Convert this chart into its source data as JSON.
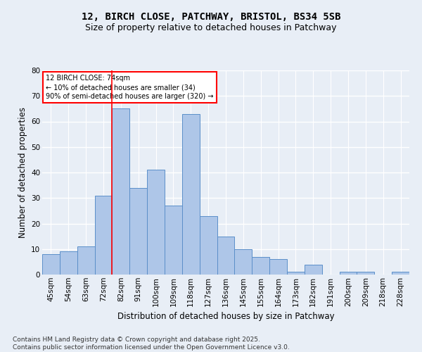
{
  "title1": "12, BIRCH CLOSE, PATCHWAY, BRISTOL, BS34 5SB",
  "title2": "Size of property relative to detached houses in Patchway",
  "xlabel": "Distribution of detached houses by size in Patchway",
  "ylabel": "Number of detached properties",
  "footer1": "Contains HM Land Registry data © Crown copyright and database right 2025.",
  "footer2": "Contains public sector information licensed under the Open Government Licence v3.0.",
  "categories": [
    "45sqm",
    "54sqm",
    "63sqm",
    "72sqm",
    "82sqm",
    "91sqm",
    "100sqm",
    "109sqm",
    "118sqm",
    "127sqm",
    "136sqm",
    "145sqm",
    "155sqm",
    "164sqm",
    "173sqm",
    "182sqm",
    "191sqm",
    "200sqm",
    "209sqm",
    "218sqm",
    "228sqm"
  ],
  "values": [
    8,
    9,
    11,
    31,
    65,
    34,
    41,
    27,
    63,
    23,
    15,
    10,
    7,
    6,
    1,
    4,
    0,
    1,
    1,
    0,
    1
  ],
  "bar_color": "#aec6e8",
  "bar_edge_color": "#5b8fc9",
  "redline_x": 3.5,
  "annotation_line1": "12 BIRCH CLOSE: 74sqm",
  "annotation_line2": "← 10% of detached houses are smaller (34)",
  "annotation_line3": "90% of semi-detached houses are larger (320) →",
  "annotation_box_color": "white",
  "annotation_box_edge": "red",
  "ylim": [
    0,
    80
  ],
  "yticks": [
    0,
    10,
    20,
    30,
    40,
    50,
    60,
    70,
    80
  ],
  "background_color": "#e8eef6",
  "grid_color": "white",
  "title_fontsize": 10,
  "subtitle_fontsize": 9,
  "tick_fontsize": 7.5,
  "axis_label_fontsize": 8.5,
  "footer_fontsize": 6.5
}
